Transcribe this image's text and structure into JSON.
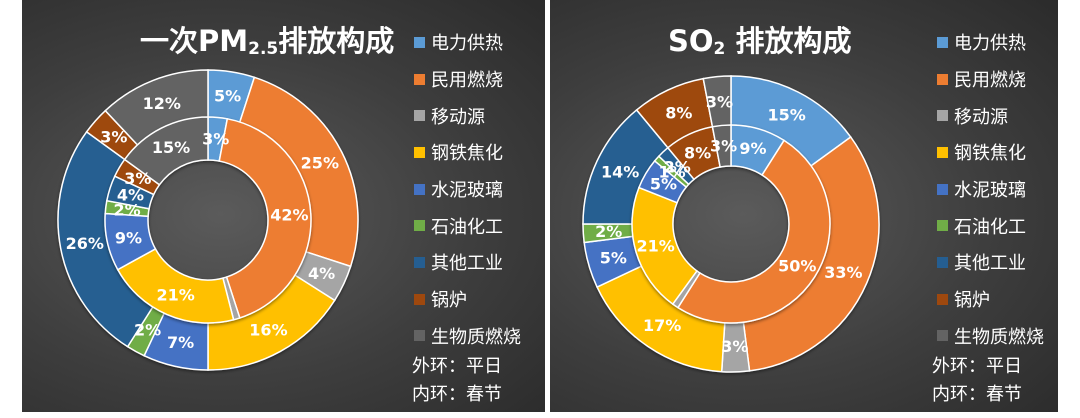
{
  "chart_data": [
    {
      "type": "donut",
      "title_main": "一次PM",
      "title_sub": "2.5",
      "title_end": "排放构成",
      "categories": [
        "电力供热",
        "民用燃烧",
        "移动源",
        "钢铁焦化",
        "水泥玻璃",
        "石油化工",
        "其他工业",
        "锅炉",
        "生物质燃烧"
      ],
      "colors": [
        "#5B9BD5",
        "#ED7D31",
        "#A5A5A5",
        "#FFC000",
        "#4472C4",
        "#70AD47",
        "#255E91",
        "#9E480E",
        "#636363"
      ],
      "series": [
        {
          "name": "外环：平日",
          "ring": "outer",
          "values": [
            5,
            25,
            4,
            16,
            7,
            2,
            26,
            3,
            12
          ]
        },
        {
          "name": "内环：春节",
          "ring": "inner",
          "values": [
            3,
            42,
            1,
            21,
            9,
            2,
            4,
            3,
            15
          ]
        }
      ],
      "labels": {
        "outer": [
          "5%",
          "25%",
          "4%",
          "16%",
          "7%",
          "2%",
          "26%",
          "3%",
          "12%"
        ],
        "inner": [
          "3%",
          "42%",
          "",
          "21%",
          "9%",
          "2%",
          "4%",
          "3%",
          "15%"
        ]
      }
    },
    {
      "type": "donut",
      "title_main": "SO",
      "title_sub": "2",
      "title_end": " 排放构成",
      "categories": [
        "电力供热",
        "民用燃烧",
        "移动源",
        "钢铁焦化",
        "水泥玻璃",
        "石油化工",
        "其他工业",
        "锅炉",
        "生物质燃烧"
      ],
      "colors": [
        "#5B9BD5",
        "#ED7D31",
        "#A5A5A5",
        "#FFC000",
        "#4472C4",
        "#70AD47",
        "#255E91",
        "#9E480E",
        "#636363"
      ],
      "series": [
        {
          "name": "外环：平日",
          "ring": "outer",
          "values": [
            15,
            33,
            3,
            17,
            5,
            2,
            14,
            8,
            3
          ]
        },
        {
          "name": "内环：春节",
          "ring": "inner",
          "values": [
            9,
            50,
            1,
            21,
            5,
            1,
            2,
            8,
            3
          ]
        }
      ],
      "labels": {
        "outer": [
          "15%",
          "33%",
          "3%",
          "17%",
          "5%",
          "2%",
          "14%",
          "8%",
          "3%"
        ],
        "inner": [
          "9%",
          "50%",
          "",
          "21%",
          "5%",
          "1%",
          "2%",
          "8%",
          "3%"
        ]
      }
    }
  ],
  "legend_items": [
    "电力供热",
    "民用燃烧",
    "移动源",
    "钢铁焦化",
    "水泥玻璃",
    "石油化工",
    "其他工业",
    "锅炉",
    "生物质燃烧"
  ],
  "notes": {
    "outer": "外环：平日",
    "inner": "内环：春节"
  }
}
